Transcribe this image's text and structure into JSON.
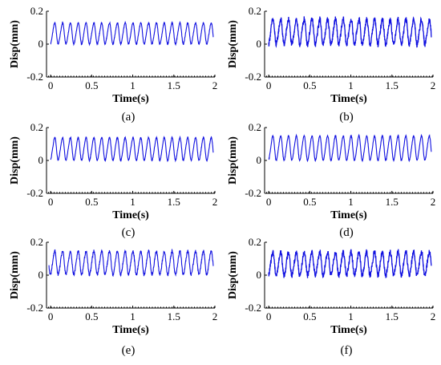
{
  "figure": {
    "panel_count": 6,
    "layout": "3 rows x 2 columns"
  },
  "chart_data": [
    {
      "type": "line",
      "caption": "(a)",
      "xlabel": "Time(s)",
      "ylabel": "Disp(mm)",
      "xlim": [
        -0.05,
        2.0
      ],
      "ylim": [
        -0.2,
        0.2
      ],
      "xticks": [
        "0",
        "0.5",
        "1",
        "1.5",
        "2"
      ],
      "yticks": [
        "0.2",
        "0",
        "-0.2"
      ],
      "color": "#1010e0",
      "series": [
        {
          "frequency_hz": 10.5,
          "cycles_shown": 21,
          "min": 0.0,
          "max": 0.13,
          "noise_level": "low",
          "x_range": [
            0.0,
            1.98
          ]
        }
      ]
    },
    {
      "type": "line",
      "caption": "(b)",
      "xlabel": "Time(s)",
      "ylabel": "Disp(mm)",
      "xlim": [
        -0.05,
        2.0
      ],
      "ylim": [
        -0.2,
        0.2
      ],
      "xticks": [
        "0",
        "0.5",
        "1",
        "1.5",
        "2"
      ],
      "yticks": [
        "0.2",
        "0",
        "-0.2"
      ],
      "color": "#1010e0",
      "series": [
        {
          "frequency_hz": 10.5,
          "cycles_shown": 21,
          "min": -0.01,
          "max": 0.16,
          "noise_level": "high",
          "x_range": [
            0.0,
            1.98
          ]
        }
      ]
    },
    {
      "type": "line",
      "caption": "(c)",
      "xlabel": "Time(s)",
      "ylabel": "Disp(mm)",
      "xlim": [
        -0.05,
        2.0
      ],
      "ylim": [
        -0.2,
        0.2
      ],
      "xticks": [
        "0",
        "0.5",
        "1",
        "1.5",
        "2"
      ],
      "yticks": [
        "0.2",
        "0",
        "-0.2"
      ],
      "color": "#1010e0",
      "series": [
        {
          "frequency_hz": 10.5,
          "cycles_shown": 21,
          "min": 0.0,
          "max": 0.14,
          "noise_level": "low",
          "x_range": [
            0.0,
            1.98
          ]
        }
      ]
    },
    {
      "type": "line",
      "caption": "(d)",
      "xlabel": "Time(s)",
      "ylabel": "Disp(mm)",
      "xlim": [
        -0.05,
        2.0
      ],
      "ylim": [
        -0.2,
        0.2
      ],
      "xticks": [
        "0",
        "0.5",
        "1",
        "1.5",
        "2"
      ],
      "yticks": [
        "0.2",
        "0",
        "-0.2"
      ],
      "color": "#1010e0",
      "series": [
        {
          "frequency_hz": 10.5,
          "cycles_shown": 21,
          "min": 0.0,
          "max": 0.15,
          "noise_level": "low",
          "x_range": [
            0.0,
            1.98
          ]
        }
      ]
    },
    {
      "type": "line",
      "caption": "(e)",
      "xlabel": "Time(s)",
      "ylabel": "Disp(mm)",
      "xlim": [
        -0.05,
        2.0
      ],
      "ylim": [
        -0.2,
        0.2
      ],
      "xticks": [
        "0",
        "0.5",
        "1",
        "1.5",
        "2"
      ],
      "yticks": [
        "0.2",
        "0",
        "-0.2"
      ],
      "color": "#1010e0",
      "series": [
        {
          "frequency_hz": 10.5,
          "cycles_shown": 21,
          "min": 0.0,
          "max": 0.15,
          "noise_level": "medium",
          "x_range": [
            -0.02,
            1.98
          ]
        }
      ]
    },
    {
      "type": "line",
      "caption": "(f)",
      "xlabel": "Time(s)",
      "ylabel": "Disp(mm)",
      "xlim": [
        -0.05,
        2.0
      ],
      "ylim": [
        -0.2,
        0.2
      ],
      "xticks": [
        "0",
        "0.5",
        "1",
        "1.5",
        "2"
      ],
      "yticks": [
        "0.2",
        "0",
        "-0.2"
      ],
      "color": "#1010e0",
      "series": [
        {
          "frequency_hz": 10.5,
          "cycles_shown": 21,
          "min": -0.01,
          "max": 0.15,
          "noise_level": "high",
          "x_range": [
            0.0,
            1.98
          ]
        }
      ]
    }
  ]
}
